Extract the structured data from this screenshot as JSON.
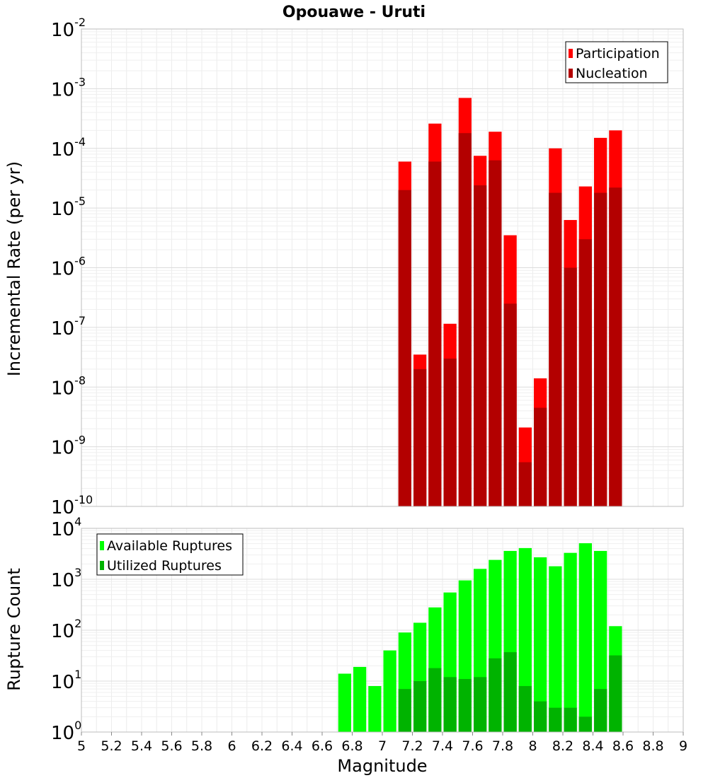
{
  "chart_data": [
    {
      "type": "bar",
      "title": "Opouawe - Uruti",
      "ylabel": "Incremental Rate (per yr)",
      "xlabel": "",
      "y_scale": "log",
      "ylim": [
        1e-10,
        0.01
      ],
      "xlim": [
        5,
        9
      ],
      "bar_width": 0.1,
      "ytick_exponents": [
        "-2",
        "-3",
        "-4",
        "-5",
        "-6",
        "-7",
        "-8",
        "-9",
        "-10"
      ],
      "legend": {
        "position": "top-right",
        "entries": [
          "Participation",
          "Nucleation"
        ]
      },
      "series": [
        {
          "name": "Participation",
          "color": "#ff0000",
          "x": [
            7.1,
            7.2,
            7.3,
            7.4,
            7.5,
            7.6,
            7.7,
            7.8,
            7.9,
            8.0,
            8.1,
            8.2,
            8.3,
            8.4,
            8.5
          ],
          "values": [
            6e-05,
            3.5e-08,
            0.00026,
            1.15e-07,
            0.0007,
            7.5e-05,
            0.00019,
            3.5e-06,
            2.1e-09,
            1.4e-08,
            0.0001,
            6.3e-06,
            2.3e-05,
            0.00015,
            0.0002
          ]
        },
        {
          "name": "Nucleation",
          "color": "#b30000",
          "x": [
            7.1,
            7.2,
            7.3,
            7.4,
            7.5,
            7.6,
            7.7,
            7.8,
            7.9,
            8.0,
            8.1,
            8.2,
            8.3,
            8.4,
            8.5
          ],
          "values": [
            2e-05,
            2e-08,
            6e-05,
            3e-08,
            0.00018,
            2.4e-05,
            6.3e-05,
            2.5e-07,
            5.5e-10,
            4.5e-09,
            1.8e-05,
            1e-06,
            3e-06,
            1.8e-05,
            2.2e-05
          ]
        }
      ]
    },
    {
      "type": "bar",
      "title": "",
      "ylabel": "Rupture Count",
      "xlabel": "Magnitude",
      "y_scale": "log",
      "ylim": [
        1,
        10000
      ],
      "xlim": [
        5,
        9
      ],
      "bar_width": 0.1,
      "ytick_exponents": [
        "4",
        "3",
        "2",
        "1",
        "0"
      ],
      "xtick_labels": [
        "5",
        "5.2",
        "5.4",
        "5.6",
        "5.8",
        "6",
        "6.2",
        "6.4",
        "6.6",
        "6.8",
        "7",
        "7.2",
        "7.4",
        "7.6",
        "7.8",
        "8",
        "8.2",
        "8.4",
        "8.6",
        "8.8",
        "9"
      ],
      "legend": {
        "position": "top-left",
        "entries": [
          "Available Ruptures",
          "Utilized Ruptures"
        ]
      },
      "series": [
        {
          "name": "Available Ruptures",
          "color": "#00ff00",
          "x": [
            6.7,
            6.8,
            6.9,
            7.0,
            7.1,
            7.2,
            7.3,
            7.4,
            7.5,
            7.6,
            7.7,
            7.8,
            7.9,
            8.0,
            8.1,
            8.2,
            8.3,
            8.4,
            8.5
          ],
          "values": [
            14,
            19,
            8,
            40,
            90,
            140,
            280,
            550,
            950,
            1600,
            2400,
            3600,
            4100,
            2700,
            1800,
            3300,
            5100,
            3600,
            120
          ]
        },
        {
          "name": "Utilized Ruptures",
          "color": "#00b300",
          "x": [
            7.1,
            7.2,
            7.3,
            7.4,
            7.5,
            7.6,
            7.7,
            7.8,
            7.9,
            8.0,
            8.1,
            8.2,
            8.3,
            8.4,
            8.5
          ],
          "values": [
            7,
            10,
            18,
            12,
            11,
            12,
            28,
            37,
            8,
            4,
            3,
            3,
            2,
            7,
            32
          ]
        }
      ]
    }
  ]
}
